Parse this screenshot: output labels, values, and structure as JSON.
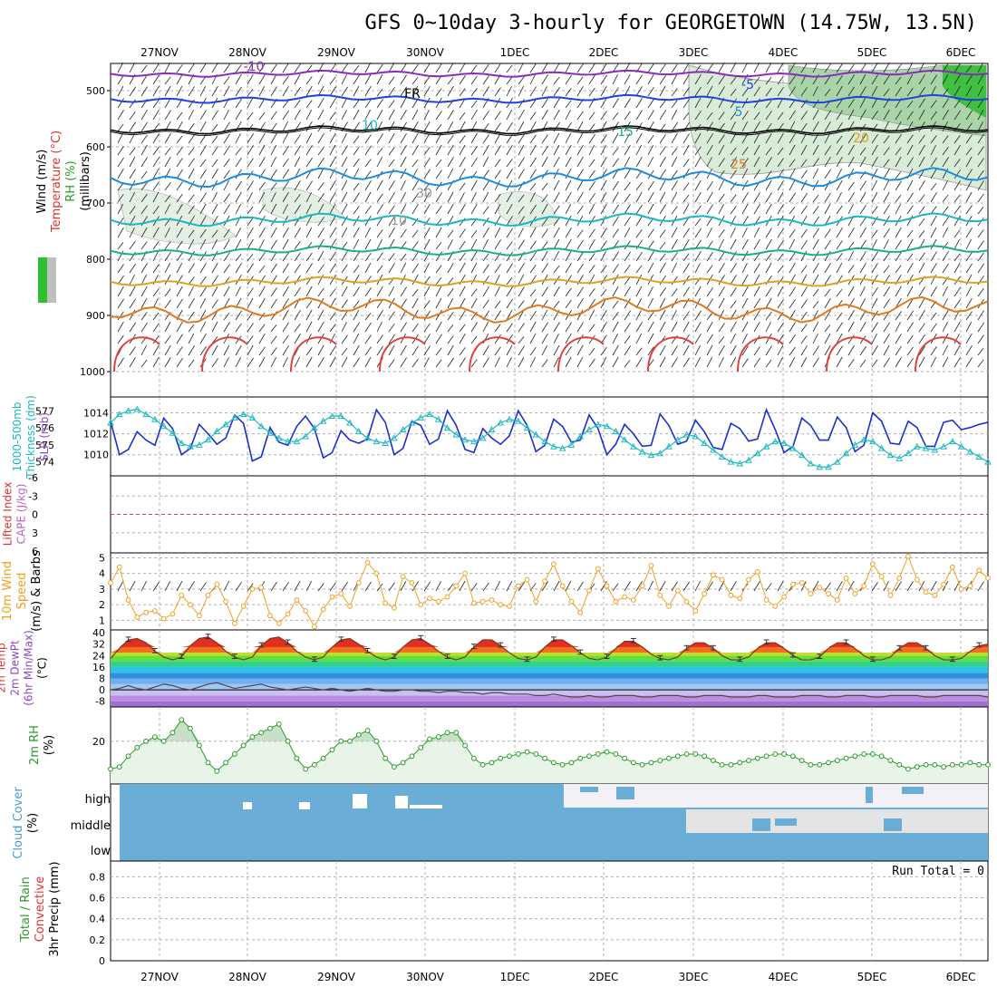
{
  "title": "GFS 0~10day 3-hourly for GEORGETOWN (14.75W, 13.5N)",
  "run_total_label": "Run Total = 0",
  "chart_data": {
    "type": "meteogram",
    "dates": [
      "27NOV",
      "28NOV",
      "29NOV",
      "30NOV",
      "1DEC",
      "2DEC",
      "3DEC",
      "4DEC",
      "5DEC",
      "6DEC"
    ],
    "panels": [
      {
        "id": "upper-air",
        "labels": [
          "Wind (m/s)",
          "Temperature (°C)",
          "RH (%)",
          "(millibars)"
        ],
        "label_colors": [
          "#000000",
          "#e03030",
          "#2a9a2a",
          "#000000"
        ],
        "y_ticks": [
          500,
          600,
          700,
          800,
          900,
          1000
        ],
        "ylim": [
          450,
          1000
        ],
        "contour_labels": [
          {
            "text": "-10",
            "color": "#8a2ac0",
            "series": "temperature"
          },
          {
            "text": "-5",
            "color": "#2040e0",
            "series": "temperature"
          },
          {
            "text": "FR",
            "color": "#000000",
            "series": "freezing level"
          },
          {
            "text": "5",
            "color": "#1c8ce0",
            "series": "temperature"
          },
          {
            "text": "10",
            "color": "#18b8c0",
            "series": "temperature"
          },
          {
            "text": "15",
            "color": "#18b080",
            "series": "temperature"
          },
          {
            "text": "20",
            "color": "#e0a020",
            "series": "temperature"
          },
          {
            "text": "25",
            "color": "#e07a20",
            "series": "temperature"
          },
          {
            "text": "30",
            "color": "#9a9a9a",
            "series": "rh"
          },
          {
            "text": "10",
            "color": "#9a9a9a",
            "series": "rh"
          }
        ]
      },
      {
        "id": "thickness-slp",
        "labels": [
          "1000-500mb",
          "Thickness (dm)",
          "SLP (mb)"
        ],
        "label_colors": [
          "#18b8c0",
          "#18b8c0",
          "#8a4ac0"
        ],
        "left_ticks": [
          577,
          576,
          575,
          574
        ],
        "right_ticks": [
          1014,
          1012,
          1010
        ],
        "series": [
          {
            "name": "SLP (mb)",
            "color": "#1830d0",
            "values": [
              1013.2,
              1010.0,
              1010.5,
              1012.2,
              1011.4,
              1010.9,
              1013.5,
              1012.5,
              1010.0,
              1010.6,
              1012.9,
              1012.0,
              1011.0,
              1011.6,
              1013.8,
              1013.0,
              1009.4,
              1009.8,
              1012.6,
              1011.2,
              1010.9,
              1012.7,
              1013.7,
              1012.5,
              1009.7,
              1010.2,
              1012.3,
              1011.4,
              1011.1,
              1011.5,
              1014.3,
              1013.1,
              1010.0,
              1010.6,
              1013.2,
              1012.8,
              1011.0,
              1011.5,
              1014.2,
              1012.8,
              1010.5,
              1010.2,
              1012.5,
              1011.6,
              1011.0,
              1011.8,
              1014.2,
              1012.8,
              1010.3,
              1010.9,
              1013.4,
              1012.7,
              1011.2,
              1011.4,
              1013.8,
              1012.5,
              1010.0,
              1011.0,
              1012.9,
              1012.0,
              1010.8,
              1010.9,
              1013.9,
              1012.8,
              1011.0,
              1011.3,
              1013.3,
              1012.2,
              1010.7,
              1010.5,
              1013.0,
              1012.5,
              1011.3,
              1011.5,
              1014.3,
              1012.4,
              1010.2,
              1010.8,
              1013.5,
              1012.8,
              1011.4,
              1011.4,
              1013.6,
              1012.6,
              1010.3,
              1010.9,
              1014.0,
              1013.2,
              1011.1,
              1011.0,
              1013.2,
              1012.6,
              1010.8,
              1010.8,
              1013.1,
              1013.3,
              1012.4,
              1012.6,
              1012.9,
              1013.1
            ]
          },
          {
            "name": "1000-500mb Thickness (dm)",
            "color": "#20b8c0",
            "values": [
              576.3,
              576.8,
              577.0,
              577.1,
              576.8,
              576.5,
              576.1,
              575.7,
              575.1,
              574.9,
              575.0,
              575.3,
              575.8,
              576.2,
              576.6,
              576.8,
              576.6,
              576.1,
              575.7,
              575.4,
              575.2,
              575.2,
              575.5,
              576.0,
              576.4,
              576.7,
              576.7,
              576.3,
              575.8,
              575.4,
              575.2,
              575.1,
              575.4,
              575.9,
              576.3,
              576.6,
              576.8,
              576.5,
              576.0,
              575.6,
              575.3,
              575.2,
              575.4,
              575.9,
              576.3,
              576.5,
              576.4,
              576.0,
              575.6,
              575.2,
              574.9,
              574.8,
              575.0,
              575.5,
              575.9,
              576.2,
              576.1,
              575.8,
              575.3,
              574.9,
              574.6,
              574.4,
              574.5,
              574.9,
              575.3,
              575.6,
              575.5,
              575.1,
              574.7,
              574.3,
              574.0,
              573.9,
              574.1,
              574.5,
              574.9,
              575.2,
              575.1,
              574.8,
              574.4,
              573.9,
              573.7,
              573.7,
              574.0,
              574.5,
              575.0,
              575.3,
              575.2,
              574.8,
              574.4,
              574.2,
              574.5,
              574.9,
              574.8,
              574.7,
              574.9,
              575.2,
              574.9,
              574.6,
              574.3,
              574.0
            ]
          }
        ]
      },
      {
        "id": "cape-li",
        "labels": [
          "Lifted Index",
          "CAPE (J/kg)"
        ],
        "label_colors": [
          "#e03030",
          "#c060c0"
        ],
        "y_ticks": [
          "-6",
          "-3",
          "0",
          "3",
          "6"
        ]
      },
      {
        "id": "wind10m",
        "labels": [
          "10m Wind",
          "Speed",
          "(m/s) & Barbs"
        ],
        "label_colors": [
          "#f0a020",
          "#f0a020",
          "#000000"
        ],
        "y_ticks": [
          5,
          4,
          3,
          2,
          1
        ],
        "series": [
          {
            "name": "10m Wind Speed (m/s)",
            "color": "#f0a020",
            "values": [
              3.4,
              4.4,
              2.3,
              1.2,
              1.5,
              1.6,
              1.1,
              1.4,
              2.6,
              2.0,
              1.3,
              2.6,
              3.3,
              2.2,
              0.8,
              1.9,
              3.0,
              3.1,
              1.3,
              0.8,
              1.4,
              2.3,
              1.6,
              0.6,
              1.7,
              2.5,
              2.7,
              1.9,
              3.4,
              4.7,
              4.0,
              2.1,
              1.8,
              3.8,
              3.4,
              2.0,
              2.4,
              2.2,
              2.5,
              3.2,
              4.0,
              2.1,
              2.2,
              2.3,
              2.0,
              1.9,
              3.2,
              3.6,
              2.2,
              3.5,
              4.6,
              3.2,
              2.2,
              1.5,
              2.9,
              4.3,
              3.2,
              2.2,
              2.5,
              2.3,
              3.2,
              4.5,
              2.6,
              1.9,
              2.9,
              2.2,
              1.6,
              2.7,
              3.9,
              3.6,
              2.6,
              2.4,
              3.6,
              4.1,
              2.3,
              1.9,
              2.5,
              3.3,
              3.4,
              2.7,
              3.1,
              2.7,
              2.3,
              3.7,
              2.7,
              3.2,
              4.6,
              3.8,
              2.6,
              3.7,
              5.1,
              3.6,
              2.8,
              2.6,
              3.3,
              4.4,
              3.0,
              3.2,
              4.2,
              3.7
            ]
          }
        ]
      },
      {
        "id": "temp2m",
        "labels": [
          "2m Temp",
          "2m DewPt",
          "(6hr Min/Max)",
          "(°C)"
        ],
        "label_colors": [
          "#e03030",
          "#8a4ac0",
          "#8a4ac0",
          "#000000"
        ],
        "y_ticks": [
          40,
          32,
          24,
          16,
          8,
          0,
          -8
        ],
        "series": [
          {
            "name": "2m Temp (°C)",
            "color": "#8a3020",
            "values": [
              22,
              29,
              35,
              36,
              33,
              27,
              23,
              21,
              23,
              31,
              36,
              37,
              33,
              27,
              23,
              21,
              23,
              31,
              36,
              37,
              33,
              27,
              23,
              21,
              23,
              30,
              35,
              36,
              32,
              27,
              23,
              21,
              23,
              30,
              35,
              36,
              32,
              27,
              23,
              21,
              23,
              30,
              35,
              35,
              31,
              26,
              22,
              21,
              23,
              30,
              35,
              35,
              31,
              26,
              22,
              21,
              23,
              29,
              34,
              34,
              30,
              25,
              22,
              21,
              23,
              29,
              33,
              33,
              29,
              24,
              21,
              21,
              23,
              29,
              33,
              33,
              29,
              24,
              21,
              21,
              23,
              29,
              33,
              33,
              29,
              24,
              21,
              21,
              23,
              29,
              33,
              33,
              29,
              24,
              21,
              21,
              22,
              27,
              31,
              32
            ]
          },
          {
            "name": "2m DewPt (°C)",
            "color": "#604040",
            "values": [
              0,
              1,
              3,
              1,
              0,
              2,
              4,
              3,
              1,
              0,
              2,
              4,
              5,
              3,
              1,
              2,
              3,
              4,
              2,
              1,
              0,
              1,
              2,
              1,
              0,
              1,
              0,
              -1,
              0,
              1,
              0,
              -1,
              -1,
              0,
              0,
              -1,
              -1,
              -2,
              -1,
              -1,
              -2,
              -2,
              -3,
              -2,
              -2,
              -3,
              -3,
              -3,
              -4,
              -4,
              -3,
              -4,
              -5,
              -5,
              -4,
              -5,
              -5,
              -4,
              -4,
              -4,
              -5,
              -5,
              -4,
              -4,
              -4,
              -5,
              -5,
              -4,
              -4,
              -4,
              -5,
              -5,
              -5,
              -4,
              -4,
              -5,
              -5,
              -5,
              -4,
              -4,
              -4,
              -5,
              -5,
              -4,
              -4,
              -4,
              -5,
              -5,
              -4,
              -4,
              -4,
              -4,
              -5,
              -5,
              -4,
              -4,
              -4,
              -4,
              -4,
              -5
            ]
          }
        ]
      },
      {
        "id": "rh2m",
        "labels": [
          "2m RH",
          "(%)"
        ],
        "label_colors": [
          "#2a9a2a",
          "#000000"
        ],
        "y_ticks": [
          20
        ],
        "series": [
          {
            "name": "2m RH (%)",
            "color": "#2a9a2a",
            "values": [
              7,
              8,
              13,
              17,
              20,
              22,
              20,
              24,
              30,
              26,
              18,
              10,
              6,
              10,
              14,
              18,
              22,
              24,
              26,
              28,
              20,
              12,
              7,
              9,
              12,
              16,
              20,
              20,
              23,
              25,
              20,
              12,
              8,
              10,
              13,
              17,
              21,
              22,
              24,
              24,
              18,
              12,
              9,
              10,
              12,
              13,
              14,
              15,
              14,
              12,
              10,
              9,
              10,
              12,
              13,
              14,
              15,
              14,
              12,
              10,
              9,
              10,
              11,
              12,
              13,
              14,
              14,
              13,
              11,
              9,
              9,
              10,
              11,
              12,
              13,
              14,
              14,
              13,
              11,
              9,
              9,
              10,
              11,
              12,
              13,
              14,
              14,
              13,
              11,
              9,
              7,
              8,
              9,
              9,
              8,
              9,
              9,
              10,
              9,
              9
            ]
          }
        ]
      },
      {
        "id": "cloud-cover",
        "labels": [
          "Cloud Cover",
          "(%)"
        ],
        "label_colors": [
          "#4a9ad0",
          "#000000"
        ],
        "levels": [
          "high",
          "middle",
          "low"
        ]
      },
      {
        "id": "precip",
        "labels": [
          "Total / Rain",
          "Convective",
          "3hr Precip (mm)"
        ],
        "label_colors": [
          "#2a9a2a",
          "#e03030",
          "#000000"
        ],
        "y_ticks": [
          "0.8",
          "0.6",
          "0.4",
          "0.2",
          "0"
        ]
      }
    ]
  }
}
